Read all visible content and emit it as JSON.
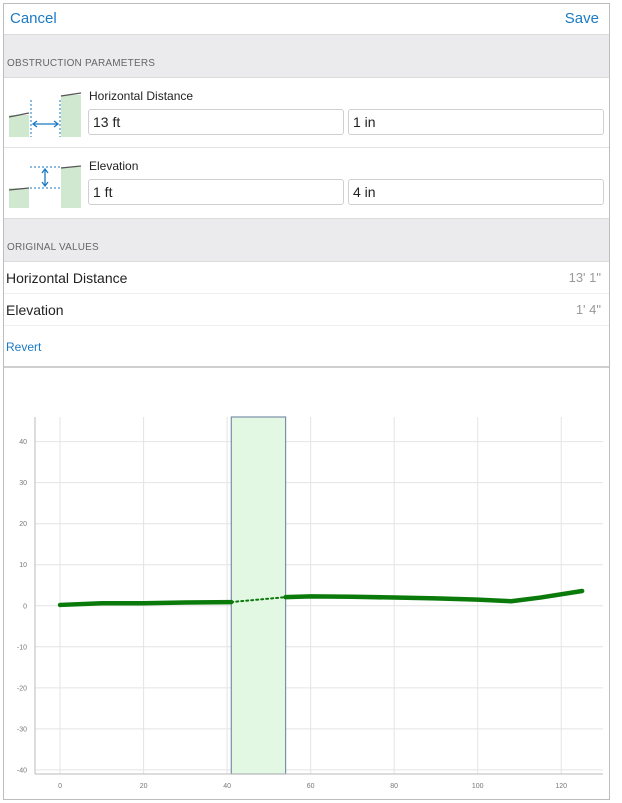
{
  "navbar": {
    "cancel_label": "Cancel",
    "save_label": "Save"
  },
  "obstruction": {
    "header": "OBSTRUCTION PARAMETERS",
    "horizontal": {
      "label": "Horizontal Distance",
      "feet": "13 ft",
      "inches": "1 in"
    },
    "elevation": {
      "label": "Elevation",
      "feet": "1 ft",
      "inches": "4 in"
    }
  },
  "original": {
    "header": "ORIGINAL VALUES",
    "rows": [
      {
        "label": "Horizontal Distance",
        "value": "13' 1\""
      },
      {
        "label": "Elevation",
        "value": "1' 4\""
      }
    ]
  },
  "revert_label": "Revert",
  "colors": {
    "accent": "#1b7ac4",
    "line": "#0a7a0a",
    "obstruction_fill": "#e3f8e3",
    "icon_fill": "#cfe8cf"
  },
  "chart_data": {
    "type": "line",
    "xlim": [
      -6,
      130
    ],
    "ylim": [
      -41,
      46
    ],
    "x_ticks": [
      "0",
      "20",
      "40",
      "60",
      "80",
      "100",
      "120"
    ],
    "y_ticks": [
      "40",
      "30",
      "20",
      "10",
      "0",
      "-10",
      "-20",
      "-30",
      "-40"
    ],
    "grid": true,
    "obstruction": {
      "x_start": 41,
      "x_end": 54
    },
    "series": [
      {
        "style": "solid",
        "points": [
          [
            0,
            0.2
          ],
          [
            10,
            0.6
          ],
          [
            20,
            0.6
          ],
          [
            30,
            0.8
          ],
          [
            41,
            0.9
          ]
        ]
      },
      {
        "style": "dotted",
        "points": [
          [
            41,
            0.9
          ],
          [
            54,
            2.1
          ]
        ]
      },
      {
        "style": "solid",
        "points": [
          [
            54,
            2.1
          ],
          [
            60,
            2.3
          ],
          [
            70,
            2.2
          ],
          [
            80,
            2.0
          ],
          [
            90,
            1.8
          ],
          [
            100,
            1.5
          ],
          [
            108,
            1.1
          ],
          [
            115,
            2.0
          ],
          [
            125,
            3.6
          ]
        ]
      }
    ]
  }
}
